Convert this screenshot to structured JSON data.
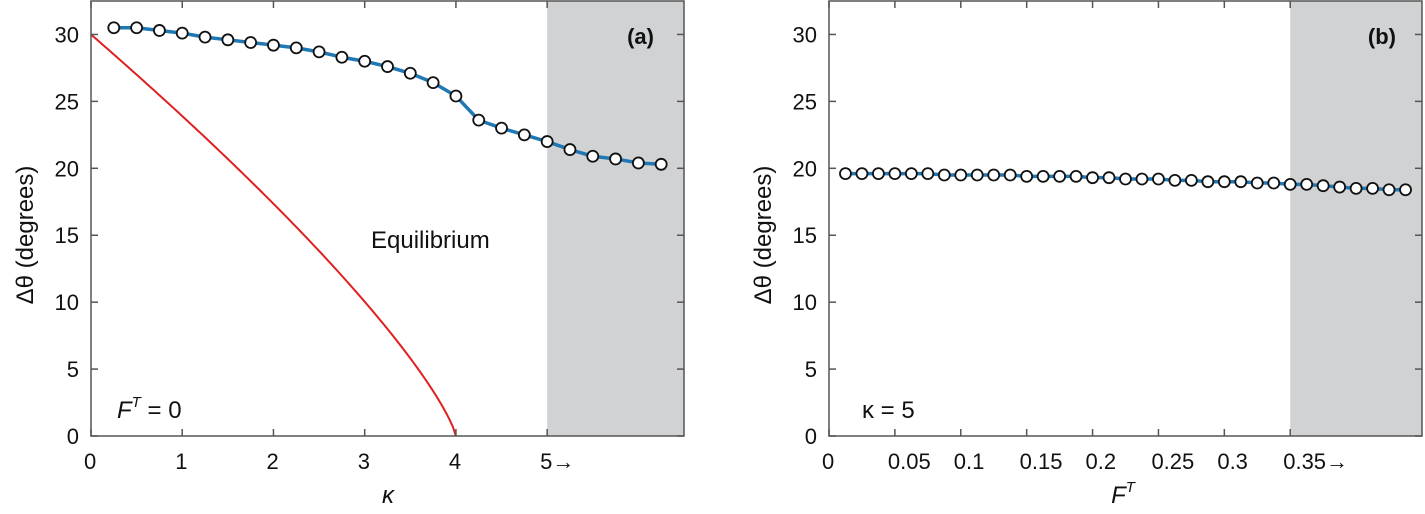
{
  "chart_data": [
    {
      "type": "line",
      "panel_label": "(a)",
      "xlabel": "κ",
      "ylabel": "Δθ (degrees)",
      "xlim": [
        0,
        6.5
      ],
      "ylim": [
        0,
        32.5
      ],
      "xticks": [
        {
          "value": 0,
          "label": "0"
        },
        {
          "value": 1,
          "label": "1"
        },
        {
          "value": 2,
          "label": "2"
        },
        {
          "value": 3,
          "label": "3"
        },
        {
          "value": 4,
          "label": "4"
        },
        {
          "value": 5,
          "label": "5→"
        }
      ],
      "yticks": [
        {
          "value": 0,
          "label": "0"
        },
        {
          "value": 5,
          "label": "5"
        },
        {
          "value": 10,
          "label": "10"
        },
        {
          "value": 15,
          "label": "15"
        },
        {
          "value": 20,
          "label": "20"
        },
        {
          "value": 25,
          "label": "25"
        },
        {
          "value": 30,
          "label": "30"
        }
      ],
      "shaded_region": [
        5,
        6.5
      ],
      "grid": false,
      "annotations": [
        {
          "text": "Equilibrium"
        },
        {
          "text_main": "F",
          "text_sup": "T",
          "text_rest": " = 0"
        }
      ],
      "series": [
        {
          "style": "blue line with white circle markers",
          "color": "#1f77b4",
          "x": [
            0.25,
            0.5,
            0.75,
            1.0,
            1.25,
            1.5,
            1.75,
            2.0,
            2.25,
            2.5,
            2.75,
            3.0,
            3.25,
            3.5,
            3.75,
            4.0,
            4.25,
            4.5,
            4.75,
            5.0,
            5.25,
            5.5,
            5.75,
            6.0,
            6.25
          ],
          "y": [
            30.5,
            30.5,
            30.3,
            30.1,
            29.8,
            29.6,
            29.4,
            29.2,
            29.0,
            28.7,
            28.3,
            28.0,
            27.6,
            27.1,
            26.4,
            25.4,
            23.6,
            23.0,
            22.5,
            22.0,
            21.4,
            20.9,
            20.7,
            20.4,
            20.3
          ]
        },
        {
          "name": "Equilibrium",
          "style": "red curve",
          "color": "#e02020",
          "function": "equilibrium",
          "domain": [
            0,
            4
          ]
        }
      ]
    },
    {
      "type": "line",
      "panel_label": "(b)",
      "xlabel_main": "F",
      "xlabel_sup": "T",
      "ylabel": "Δθ (degrees)",
      "xlim": [
        0,
        0.45
      ],
      "ylim": [
        0,
        32.5
      ],
      "xticks": [
        {
          "value": 0,
          "label": "0"
        },
        {
          "value": 0.05,
          "label": "0.05"
        },
        {
          "value": 0.1,
          "label": "0.1"
        },
        {
          "value": 0.15,
          "label": "0.15"
        },
        {
          "value": 0.2,
          "label": "0.2"
        },
        {
          "value": 0.25,
          "label": "0.25"
        },
        {
          "value": 0.3,
          "label": "0.3"
        },
        {
          "value": 0.35,
          "label": "0.35→"
        }
      ],
      "yticks": [
        {
          "value": 0,
          "label": "0"
        },
        {
          "value": 5,
          "label": "5"
        },
        {
          "value": 10,
          "label": "10"
        },
        {
          "value": 15,
          "label": "15"
        },
        {
          "value": 20,
          "label": "20"
        },
        {
          "value": 25,
          "label": "25"
        },
        {
          "value": 30,
          "label": "30"
        }
      ],
      "shaded_region": [
        0.35,
        0.45
      ],
      "grid": false,
      "annotations": [
        {
          "text": "κ = 5"
        }
      ],
      "series": [
        {
          "style": "blue line with white circle markers",
          "color": "#1f77b4",
          "x": [
            0.0125,
            0.025,
            0.0375,
            0.05,
            0.0625,
            0.075,
            0.0875,
            0.1,
            0.1125,
            0.125,
            0.1375,
            0.15,
            0.1625,
            0.175,
            0.1875,
            0.2,
            0.2125,
            0.225,
            0.2375,
            0.25,
            0.2625,
            0.275,
            0.2875,
            0.3,
            0.3125,
            0.325,
            0.3375,
            0.35,
            0.3625,
            0.375,
            0.3875,
            0.4,
            0.4125,
            0.425,
            0.4375
          ],
          "y": [
            19.6,
            19.6,
            19.6,
            19.6,
            19.6,
            19.6,
            19.5,
            19.5,
            19.5,
            19.5,
            19.5,
            19.4,
            19.4,
            19.4,
            19.4,
            19.3,
            19.3,
            19.2,
            19.2,
            19.2,
            19.1,
            19.1,
            19.0,
            19.0,
            19.0,
            18.9,
            18.9,
            18.8,
            18.8,
            18.7,
            18.6,
            18.5,
            18.5,
            18.4,
            18.4
          ]
        }
      ]
    }
  ]
}
